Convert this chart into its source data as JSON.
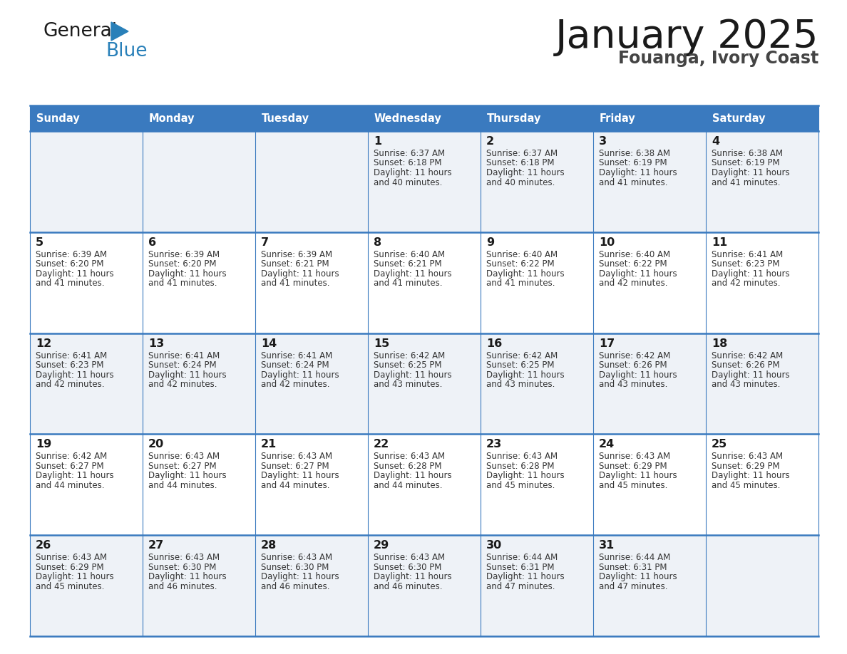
{
  "title": "January 2025",
  "subtitle": "Fouanga, Ivory Coast",
  "header_color": "#3a7abf",
  "header_text_color": "#ffffff",
  "cell_bg_even": "#eef2f7",
  "cell_bg_odd": "#ffffff",
  "border_color": "#3a7abf",
  "text_color": "#333333",
  "days_of_week": [
    "Sunday",
    "Monday",
    "Tuesday",
    "Wednesday",
    "Thursday",
    "Friday",
    "Saturday"
  ],
  "calendar_data": [
    [
      {
        "day": "",
        "sunrise": "",
        "sunset": "",
        "daylight": ""
      },
      {
        "day": "",
        "sunrise": "",
        "sunset": "",
        "daylight": ""
      },
      {
        "day": "",
        "sunrise": "",
        "sunset": "",
        "daylight": ""
      },
      {
        "day": "1",
        "sunrise": "6:37 AM",
        "sunset": "6:18 PM",
        "daylight_line1": "Daylight: 11 hours",
        "daylight_line2": "and 40 minutes."
      },
      {
        "day": "2",
        "sunrise": "6:37 AM",
        "sunset": "6:18 PM",
        "daylight_line1": "Daylight: 11 hours",
        "daylight_line2": "and 40 minutes."
      },
      {
        "day": "3",
        "sunrise": "6:38 AM",
        "sunset": "6:19 PM",
        "daylight_line1": "Daylight: 11 hours",
        "daylight_line2": "and 41 minutes."
      },
      {
        "day": "4",
        "sunrise": "6:38 AM",
        "sunset": "6:19 PM",
        "daylight_line1": "Daylight: 11 hours",
        "daylight_line2": "and 41 minutes."
      }
    ],
    [
      {
        "day": "5",
        "sunrise": "6:39 AM",
        "sunset": "6:20 PM",
        "daylight_line1": "Daylight: 11 hours",
        "daylight_line2": "and 41 minutes."
      },
      {
        "day": "6",
        "sunrise": "6:39 AM",
        "sunset": "6:20 PM",
        "daylight_line1": "Daylight: 11 hours",
        "daylight_line2": "and 41 minutes."
      },
      {
        "day": "7",
        "sunrise": "6:39 AM",
        "sunset": "6:21 PM",
        "daylight_line1": "Daylight: 11 hours",
        "daylight_line2": "and 41 minutes."
      },
      {
        "day": "8",
        "sunrise": "6:40 AM",
        "sunset": "6:21 PM",
        "daylight_line1": "Daylight: 11 hours",
        "daylight_line2": "and 41 minutes."
      },
      {
        "day": "9",
        "sunrise": "6:40 AM",
        "sunset": "6:22 PM",
        "daylight_line1": "Daylight: 11 hours",
        "daylight_line2": "and 41 minutes."
      },
      {
        "day": "10",
        "sunrise": "6:40 AM",
        "sunset": "6:22 PM",
        "daylight_line1": "Daylight: 11 hours",
        "daylight_line2": "and 42 minutes."
      },
      {
        "day": "11",
        "sunrise": "6:41 AM",
        "sunset": "6:23 PM",
        "daylight_line1": "Daylight: 11 hours",
        "daylight_line2": "and 42 minutes."
      }
    ],
    [
      {
        "day": "12",
        "sunrise": "6:41 AM",
        "sunset": "6:23 PM",
        "daylight_line1": "Daylight: 11 hours",
        "daylight_line2": "and 42 minutes."
      },
      {
        "day": "13",
        "sunrise": "6:41 AM",
        "sunset": "6:24 PM",
        "daylight_line1": "Daylight: 11 hours",
        "daylight_line2": "and 42 minutes."
      },
      {
        "day": "14",
        "sunrise": "6:41 AM",
        "sunset": "6:24 PM",
        "daylight_line1": "Daylight: 11 hours",
        "daylight_line2": "and 42 minutes."
      },
      {
        "day": "15",
        "sunrise": "6:42 AM",
        "sunset": "6:25 PM",
        "daylight_line1": "Daylight: 11 hours",
        "daylight_line2": "and 43 minutes."
      },
      {
        "day": "16",
        "sunrise": "6:42 AM",
        "sunset": "6:25 PM",
        "daylight_line1": "Daylight: 11 hours",
        "daylight_line2": "and 43 minutes."
      },
      {
        "day": "17",
        "sunrise": "6:42 AM",
        "sunset": "6:26 PM",
        "daylight_line1": "Daylight: 11 hours",
        "daylight_line2": "and 43 minutes."
      },
      {
        "day": "18",
        "sunrise": "6:42 AM",
        "sunset": "6:26 PM",
        "daylight_line1": "Daylight: 11 hours",
        "daylight_line2": "and 43 minutes."
      }
    ],
    [
      {
        "day": "19",
        "sunrise": "6:42 AM",
        "sunset": "6:27 PM",
        "daylight_line1": "Daylight: 11 hours",
        "daylight_line2": "and 44 minutes."
      },
      {
        "day": "20",
        "sunrise": "6:43 AM",
        "sunset": "6:27 PM",
        "daylight_line1": "Daylight: 11 hours",
        "daylight_line2": "and 44 minutes."
      },
      {
        "day": "21",
        "sunrise": "6:43 AM",
        "sunset": "6:27 PM",
        "daylight_line1": "Daylight: 11 hours",
        "daylight_line2": "and 44 minutes."
      },
      {
        "day": "22",
        "sunrise": "6:43 AM",
        "sunset": "6:28 PM",
        "daylight_line1": "Daylight: 11 hours",
        "daylight_line2": "and 44 minutes."
      },
      {
        "day": "23",
        "sunrise": "6:43 AM",
        "sunset": "6:28 PM",
        "daylight_line1": "Daylight: 11 hours",
        "daylight_line2": "and 45 minutes."
      },
      {
        "day": "24",
        "sunrise": "6:43 AM",
        "sunset": "6:29 PM",
        "daylight_line1": "Daylight: 11 hours",
        "daylight_line2": "and 45 minutes."
      },
      {
        "day": "25",
        "sunrise": "6:43 AM",
        "sunset": "6:29 PM",
        "daylight_line1": "Daylight: 11 hours",
        "daylight_line2": "and 45 minutes."
      }
    ],
    [
      {
        "day": "26",
        "sunrise": "6:43 AM",
        "sunset": "6:29 PM",
        "daylight_line1": "Daylight: 11 hours",
        "daylight_line2": "and 45 minutes."
      },
      {
        "day": "27",
        "sunrise": "6:43 AM",
        "sunset": "6:30 PM",
        "daylight_line1": "Daylight: 11 hours",
        "daylight_line2": "and 46 minutes."
      },
      {
        "day": "28",
        "sunrise": "6:43 AM",
        "sunset": "6:30 PM",
        "daylight_line1": "Daylight: 11 hours",
        "daylight_line2": "and 46 minutes."
      },
      {
        "day": "29",
        "sunrise": "6:43 AM",
        "sunset": "6:30 PM",
        "daylight_line1": "Daylight: 11 hours",
        "daylight_line2": "and 46 minutes."
      },
      {
        "day": "30",
        "sunrise": "6:44 AM",
        "sunset": "6:31 PM",
        "daylight_line1": "Daylight: 11 hours",
        "daylight_line2": "and 47 minutes."
      },
      {
        "day": "31",
        "sunrise": "6:44 AM",
        "sunset": "6:31 PM",
        "daylight_line1": "Daylight: 11 hours",
        "daylight_line2": "and 47 minutes."
      },
      {
        "day": "",
        "sunrise": "",
        "sunset": "",
        "daylight_line1": "",
        "daylight_line2": ""
      }
    ]
  ],
  "logo_text_general": "General",
  "logo_text_blue": "Blue",
  "logo_color_general": "#1a1a1a",
  "logo_color_blue": "#2980b9",
  "logo_triangle_color": "#2980b9"
}
